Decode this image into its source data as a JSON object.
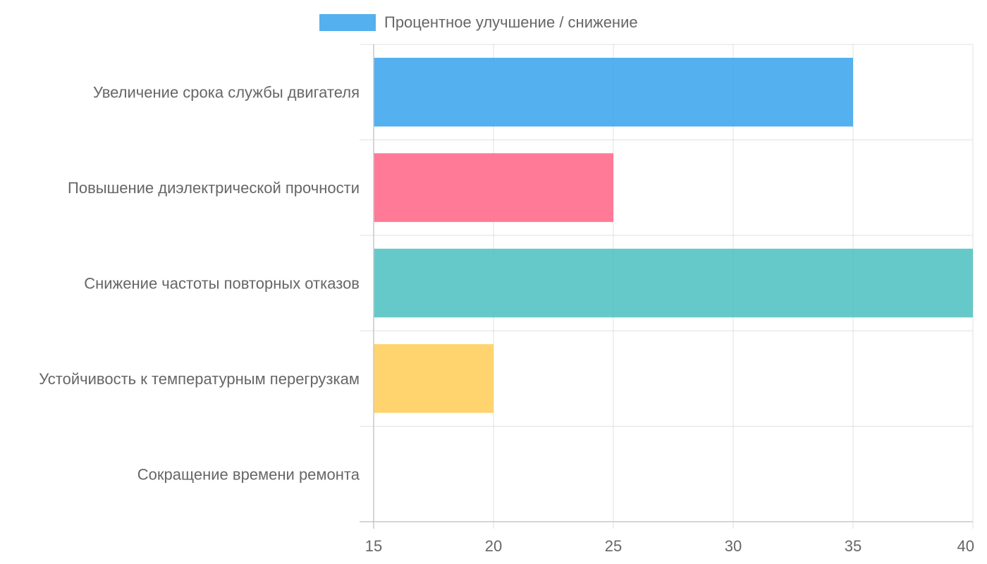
{
  "chart_data": {
    "type": "bar",
    "orientation": "horizontal",
    "title": "",
    "xlabel": "",
    "ylabel": "",
    "xlim": [
      15,
      40
    ],
    "x_ticks": [
      15,
      20,
      25,
      30,
      35,
      40
    ],
    "grid": true,
    "legend_position": "top-center",
    "legend_label": "Процентное улучшение / снижение",
    "legend_color": "#36A2EB",
    "categories": [
      "Увеличение срока службы двигателя",
      "Повышение диэлектрической прочности",
      "Снижение частоты повторных отказов",
      "Устойчивость к температурным перегрузкам",
      "Сокращение времени ремонта"
    ],
    "series": [
      {
        "name": "Процентное улучшение / снижение",
        "values": [
          35,
          25,
          40,
          20,
          15
        ],
        "colors": [
          "#36A2EB",
          "#FF6384",
          "#4BC0C0",
          "#FFCD56",
          "#9966FF"
        ]
      }
    ]
  }
}
